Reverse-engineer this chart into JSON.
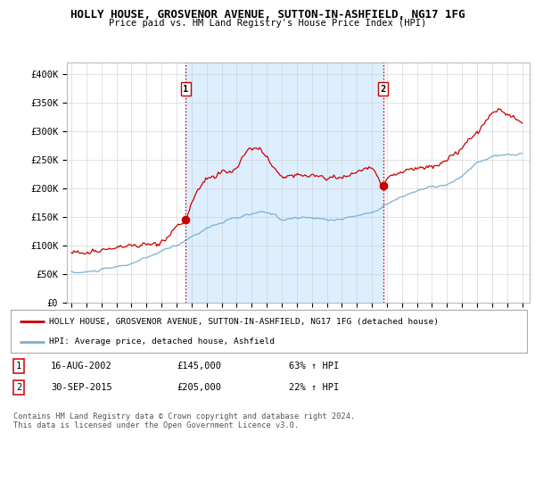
{
  "title1": "HOLLY HOUSE, GROSVENOR AVENUE, SUTTON-IN-ASHFIELD, NG17 1FG",
  "title2": "Price paid vs. HM Land Registry's House Price Index (HPI)",
  "ylim": [
    0,
    420000
  ],
  "yticks": [
    0,
    50000,
    100000,
    150000,
    200000,
    250000,
    300000,
    350000,
    400000
  ],
  "ytick_labels": [
    "£0",
    "£50K",
    "£100K",
    "£150K",
    "£200K",
    "£250K",
    "£300K",
    "£350K",
    "£400K"
  ],
  "xtick_years": [
    1995,
    1996,
    1997,
    1998,
    1999,
    2000,
    2001,
    2002,
    2003,
    2004,
    2005,
    2006,
    2007,
    2008,
    2009,
    2010,
    2011,
    2012,
    2013,
    2014,
    2015,
    2016,
    2017,
    2018,
    2019,
    2020,
    2021,
    2022,
    2023,
    2024,
    2025
  ],
  "red_line_color": "#cc0000",
  "blue_line_color": "#7ab0d4",
  "shade_color": "#ddeeff",
  "transaction1_date": 2002.62,
  "transaction1_price": 145000,
  "transaction2_date": 2015.75,
  "transaction2_price": 205000,
  "legend_red": "HOLLY HOUSE, GROSVENOR AVENUE, SUTTON-IN-ASHFIELD, NG17 1FG (detached house)",
  "legend_blue": "HPI: Average price, detached house, Ashfield",
  "table_row1": [
    "1",
    "16-AUG-2002",
    "£145,000",
    "63% ↑ HPI"
  ],
  "table_row2": [
    "2",
    "30-SEP-2015",
    "£205,000",
    "22% ↑ HPI"
  ],
  "footer": "Contains HM Land Registry data © Crown copyright and database right 2024.\nThis data is licensed under the Open Government Licence v3.0.",
  "bg_color": "#ffffff",
  "grid_color": "#cccccc"
}
